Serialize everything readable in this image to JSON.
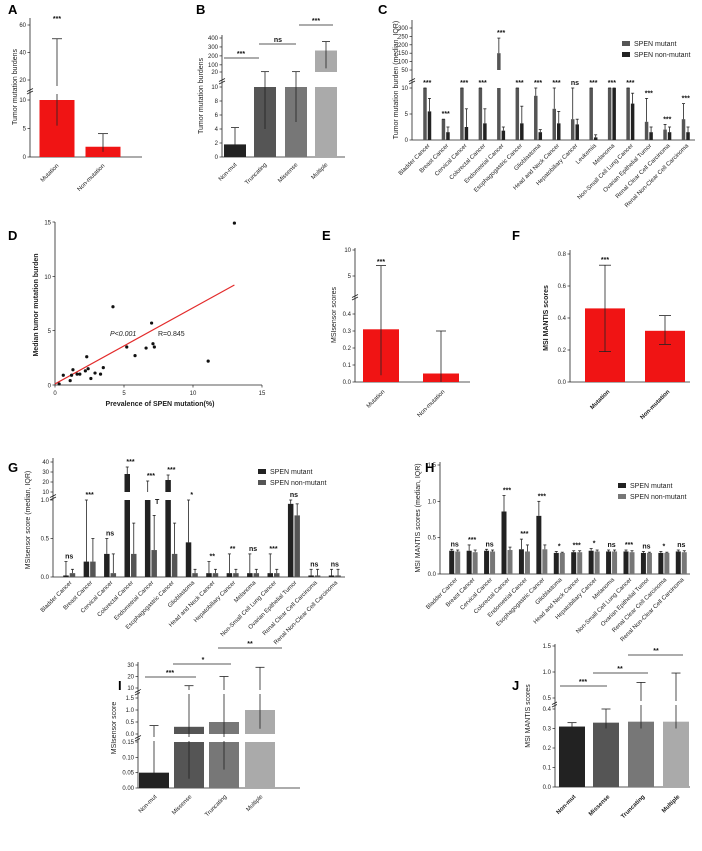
{
  "colors": {
    "red": "#f01414",
    "black": "#222222",
    "dgray": "#555555",
    "mgray": "#777777",
    "lgray": "#aaaaaa",
    "fit": "#e32b2b"
  },
  "chart_data": [
    {
      "panel": "A",
      "type": "bar",
      "ylabel": "Tumor mutation burdens",
      "categories": [
        "Mutation",
        "Non-mutation"
      ],
      "values": [
        20,
        1.8
      ],
      "err_up": [
        50,
        4.1
      ],
      "err_down": [
        5.5,
        0.9
      ],
      "yticks_low": [
        "0",
        "5",
        "10"
      ],
      "yticks_high": [
        "20",
        "40",
        "60"
      ],
      "significance": [
        "***"
      ]
    },
    {
      "panel": "B",
      "type": "bar",
      "ylabel": "Tumor mutation burdens",
      "categories": [
        "Non-mut",
        "Truncating",
        "Missense",
        "Multiple"
      ],
      "values": [
        1.8,
        15,
        18,
        260
      ],
      "err_up": [
        4.2,
        24,
        24,
        360
      ],
      "err_down": [
        0.9,
        4,
        5,
        60
      ],
      "yticks_low": [
        "0",
        "2",
        "4",
        "6",
        "8",
        "10"
      ],
      "yticks_high": [
        "20",
        "100",
        "200",
        "300",
        "400"
      ],
      "significance": [
        "***",
        "ns",
        "***"
      ]
    },
    {
      "panel": "C",
      "type": "bar",
      "ylabel": "Tumor mutation burden (median, IQR)",
      "categories": [
        "Bladder Cancer",
        "Breast Cancer",
        "Cervical Cancer",
        "Colorectal Cancer",
        "Endometrial Cancer",
        "Esophagogastric Cancer",
        "Glioblastoma",
        "Head and Neck Cancer",
        "Hepatobiliary Cancer",
        "Leukemia",
        "Melanoma",
        "Non-Small Cell Lung Cancer",
        "Ovarian Epithelial Tumor",
        "Renal Clear Cell Carcinoma",
        "Renal Non-Clear Cell Carcinoma"
      ],
      "series": [
        {
          "name": "SPEN mutant",
          "values": [
            10,
            4,
            10,
            10,
            150,
            10,
            8.5,
            6,
            4,
            10,
            10,
            10,
            3.5,
            2,
            4
          ],
          "err_up": [
            10,
            4,
            10,
            10,
            240,
            10,
            10,
            10,
            10,
            10,
            10,
            10,
            8,
            3,
            7
          ]
        },
        {
          "name": "SPEN non-mutant",
          "values": [
            5.5,
            1.5,
            2.5,
            3.2,
            1.8,
            3.2,
            1.5,
            3.2,
            3,
            0.5,
            10,
            7,
            1.5,
            1.5,
            1.5
          ],
          "err_up": [
            8,
            2.5,
            6,
            6,
            2.5,
            6.5,
            2,
            5.5,
            4,
            1,
            10,
            9,
            2.5,
            2.5,
            2.5
          ]
        }
      ],
      "yticks_low": [
        "0",
        "5",
        "10"
      ],
      "yticks_high": [
        "50",
        "100",
        "150",
        "200",
        "250",
        "300"
      ],
      "significance": [
        "***",
        "***",
        "***",
        "***",
        "***",
        "***",
        "***",
        "***",
        "ns",
        "***",
        "***",
        "***",
        "***",
        "***",
        "***"
      ]
    },
    {
      "panel": "D",
      "type": "scatter",
      "xlabel": "Prevalence of SPEN mutation(%)",
      "ylabel": "Median tumor mutation burden",
      "xlim": [
        0,
        15
      ],
      "ylim": [
        0,
        15
      ],
      "xticks": [
        "0",
        "5",
        "10",
        "15"
      ],
      "yticks": [
        "0",
        "5",
        "10",
        "15"
      ],
      "points": [
        [
          0.3,
          0.1
        ],
        [
          0.6,
          0.9
        ],
        [
          1.1,
          0.4
        ],
        [
          1.2,
          0.9
        ],
        [
          1.3,
          1.4
        ],
        [
          1.6,
          1.0
        ],
        [
          1.8,
          1.0
        ],
        [
          2.2,
          1.3
        ],
        [
          2.3,
          2.6
        ],
        [
          2.4,
          1.5
        ],
        [
          2.6,
          0.6
        ],
        [
          2.9,
          1.1
        ],
        [
          3.3,
          1.0
        ],
        [
          3.5,
          1.6
        ],
        [
          4.2,
          7.2
        ],
        [
          5.2,
          3.5
        ],
        [
          5.8,
          2.7
        ],
        [
          6.6,
          3.4
        ],
        [
          7.0,
          5.7
        ],
        [
          7.1,
          3.8
        ],
        [
          7.2,
          3.5
        ],
        [
          11.1,
          2.2
        ],
        [
          13.0,
          14.9
        ]
      ],
      "fit_line": [
        [
          0,
          0.1
        ],
        [
          13,
          9.2
        ]
      ],
      "annotation_p": "P<0.001",
      "annotation_r": "R=0.845"
    },
    {
      "panel": "E",
      "type": "bar",
      "ylabel": "MSIsensor scores",
      "categories": [
        "Mutation",
        "Non-mutation"
      ],
      "values": [
        0.31,
        0.05
      ],
      "err_up": [
        7,
        0.3
      ],
      "err_down": [
        0.04,
        0
      ],
      "yticks_low": [
        "0.0",
        "0.1",
        "0.2",
        "0.3",
        "0.4"
      ],
      "yticks_high": [
        "5",
        "10"
      ],
      "significance": [
        "***"
      ]
    },
    {
      "panel": "F",
      "type": "bar",
      "ylabel": "MSI MANTIS scores",
      "categories": [
        "Mutation",
        "Non-mutation"
      ],
      "values": [
        0.46,
        0.32
      ],
      "err_up": [
        0.73,
        0.415
      ],
      "err_down": [
        0.19,
        0.235
      ],
      "yticks": [
        "0.0",
        "0.2",
        "0.4",
        "0.6",
        "0.8"
      ],
      "significance": [
        "***"
      ]
    },
    {
      "panel": "G",
      "type": "bar",
      "ylabel": "MSIsensor score (median, IQR)",
      "categories": [
        "Bladder Cancer",
        "Breast Cancer",
        "Cervical Cancer",
        "Colorectal Cancer",
        "Endometrial Cancer",
        "Esophagogastric Cancer",
        "Glioblastoma",
        "Head and Neck Cancer",
        "Hepatobiliary Cancer",
        "Melanoma",
        "Non-Small Cell Lung Cancer",
        "Ovarian Epithelial Tumor",
        "Renal Clear Cell Carcinoma",
        "Renal Non-Clear Cell Carcinoma"
      ],
      "series": [
        {
          "name": "SPEN mutant",
          "values": [
            0.02,
            0.2,
            0.3,
            28,
            5,
            22,
            0.45,
            0.05,
            0.05,
            0.05,
            0.05,
            0.95,
            0.02,
            0.02
          ],
          "err_up": [
            0.2,
            1,
            0.5,
            35,
            21,
            27,
            1,
            0.2,
            0.3,
            0.3,
            0.3,
            1,
            0.1,
            0.1
          ]
        },
        {
          "name": "SPEN non-mutant",
          "values": [
            0.05,
            0.2,
            0.05,
            0.3,
            0.35,
            0.3,
            0.05,
            0.05,
            0.05,
            0.05,
            0.05,
            0.8,
            0.02,
            0.02
          ],
          "err_up": [
            0.1,
            0.5,
            0.3,
            0.7,
            0.8,
            0.7,
            0.1,
            0.1,
            0.1,
            0.1,
            0.1,
            0.95,
            0.1,
            0.1
          ]
        }
      ],
      "yticks_low": [
        "0.0",
        "0.5",
        "1.0"
      ],
      "yticks_high": [
        "10",
        "20",
        "30",
        "40"
      ],
      "significance": [
        "ns",
        "***",
        "ns",
        "***",
        "***",
        "***",
        "*",
        "**",
        "**",
        "ns",
        "***",
        "ns",
        "ns",
        "ns"
      ],
      "extra_mark": "T"
    },
    {
      "panel": "H",
      "type": "bar",
      "ylabel": "MSI MANTIS scores (median, IQR)",
      "categories": [
        "Bladder Cancer",
        "Breast Cancer",
        "Cervical Cancer",
        "Colorectal Cancer",
        "Endometrial Cancer",
        "Esophagogastric Cancer",
        "Glioblastoma",
        "Head and Neck Cancer",
        "Hepatobiliary Cancer",
        "Melanoma",
        "Non-Small Cell Lung Cancer",
        "Ovarian Epithelial Tumor",
        "Renal Clear Cell Carcinoma",
        "Renal Non-Clear Cell Carcinoma"
      ],
      "series": [
        {
          "name": "SPEN mutant",
          "values": [
            0.32,
            0.32,
            0.32,
            0.86,
            0.34,
            0.8,
            0.29,
            0.3,
            0.32,
            0.31,
            0.31,
            0.29,
            0.29,
            0.31
          ],
          "err_up": [
            0.34,
            0.4,
            0.34,
            1.08,
            0.48,
            1.0,
            0.31,
            0.32,
            0.35,
            0.33,
            0.33,
            0.31,
            0.31,
            0.33
          ]
        },
        {
          "name": "SPEN non-mutant",
          "values": [
            0.31,
            0.3,
            0.31,
            0.33,
            0.31,
            0.34,
            0.29,
            0.3,
            0.31,
            0.31,
            0.3,
            0.29,
            0.29,
            0.3
          ],
          "err_up": [
            0.33,
            0.33,
            0.33,
            0.37,
            0.4,
            0.4,
            0.3,
            0.32,
            0.33,
            0.33,
            0.32,
            0.3,
            0.3,
            0.32
          ]
        }
      ],
      "yticks": [
        "0.0",
        "0.5",
        "1.0",
        "1.5"
      ],
      "significance": [
        "ns",
        "***",
        "ns",
        "***",
        "***",
        "***",
        "*",
        "***",
        "*",
        "ns",
        "***",
        "ns",
        "*",
        "ns"
      ]
    },
    {
      "panel": "I",
      "type": "bar",
      "ylabel": "MSIsensor score",
      "categories": [
        "Non-mut",
        "Missense",
        "Truncating",
        "Multiple"
      ],
      "values": [
        0.05,
        0.3,
        0.5,
        1.0
      ],
      "err_up": [
        0.35,
        12,
        20,
        28
      ],
      "err_down": [
        0,
        0.03,
        0.06,
        0.22
      ],
      "yticks_low": [
        "0.00",
        "0.05",
        "0.10",
        "0.15"
      ],
      "yticks_mid": [
        "0.0",
        "0.5",
        "1.0",
        "1.5"
      ],
      "yticks_high": [
        "10",
        "20",
        "30"
      ],
      "significance": [
        "***",
        "*",
        "**"
      ]
    },
    {
      "panel": "J",
      "type": "bar",
      "ylabel": "MSI MANTIS scores",
      "categories": [
        "Non-mut",
        "Missense",
        "Truncating",
        "Multiple"
      ],
      "values": [
        0.31,
        0.33,
        0.335,
        0.335
      ],
      "err_up": [
        0.33,
        0.4,
        0.8,
        0.98
      ],
      "err_down": [
        0.29,
        0.3,
        0.3,
        0.3
      ],
      "yticks_low": [
        "0.0",
        "0.1",
        "0.2",
        "0.3",
        "0.4"
      ],
      "yticks_high": [
        "0.5",
        "1.0",
        "1.5"
      ],
      "significance": [
        "***",
        "**",
        "**"
      ]
    }
  ]
}
